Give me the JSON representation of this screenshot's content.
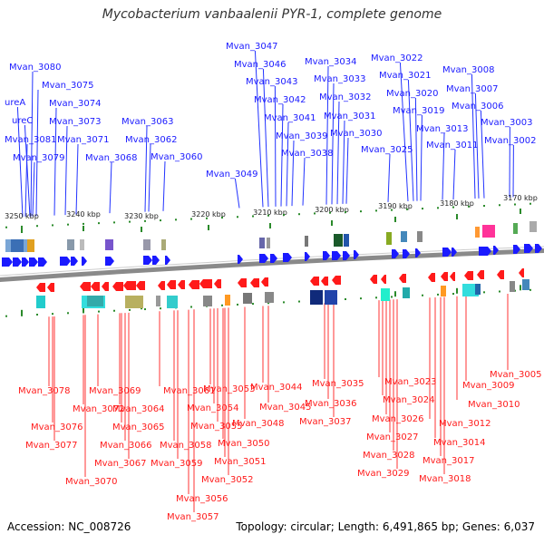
{
  "title": "Mycobacterium vanbaalenii PYR-1, complete genome",
  "footer": {
    "accession": "Accession: NC_008726",
    "summary": "Topology: circular; Length: 6,491,865 bp; Genes: 6,037"
  },
  "colors": {
    "top_label": "#1a1aff",
    "bottom_label": "#ff1a1a",
    "tick": "#2a8a2a",
    "backbone": "#8a8a8a"
  },
  "scale_ticks": [
    "3250 kbp",
    "3240 kbp",
    "3230 kbp",
    "3220 kbp",
    "3210 kbp",
    "3200 kbp",
    "3190 kbp",
    "3180 kbp",
    "3170 kbp"
  ],
  "top_labels": [
    "Mvan_3080",
    "ureA",
    "Mvan_3075",
    "ureC",
    "Mvan_3074",
    "Mvan_3073",
    "Mvan_3081",
    "Mvan_3071",
    "Mvan_3079",
    "Mvan_3068",
    "Mvan_3063",
    "Mvan_3062",
    "Mvan_3060",
    "Mvan_3049",
    "Mvan_3047",
    "Mvan_3046",
    "Mvan_3043",
    "Mvan_3042",
    "Mvan_3041",
    "Mvan_3039",
    "Mvan_3038",
    "Mvan_3034",
    "Mvan_3033",
    "Mvan_3032",
    "Mvan_3031",
    "Mvan_3030",
    "Mvan_3025",
    "Mvan_3022",
    "Mvan_3021",
    "Mvan_3020",
    "Mvan_3019",
    "Mvan_3013",
    "Mvan_3011",
    "Mvan_3008",
    "Mvan_3007",
    "Mvan_3006",
    "Mvan_3003",
    "Mvan_3002"
  ],
  "bottom_labels": [
    "Mvan_3078",
    "Mvan_3072",
    "Mvan_3076",
    "Mvan_3077",
    "Mvan_3070",
    "Mvan_3069",
    "Mvan_3064",
    "Mvan_3065",
    "Mvan_3066",
    "Mvan_3067",
    "Mvan_3061",
    "Mvan_3058",
    "Mvan_3059",
    "Mvan_3056",
    "Mvan_3057",
    "Mvan_3053",
    "Mvan_3054",
    "Mvan_3055",
    "Mvan_3050",
    "Mvan_3051",
    "Mvan_3052",
    "Mvan_3048",
    "Mvan_3044",
    "Mvan_3045",
    "Mvan_3035",
    "Mvan_3036",
    "Mvan_3037",
    "Mvan_3023",
    "Mvan_3024",
    "Mvan_3026",
    "Mvan_3027",
    "Mvan_3028",
    "Mvan_3029",
    "Mvan_3012",
    "Mvan_3014",
    "Mvan_3017",
    "Mvan_3018",
    "Mvan_3010",
    "Mvan_3009",
    "Mvan_3005"
  ]
}
